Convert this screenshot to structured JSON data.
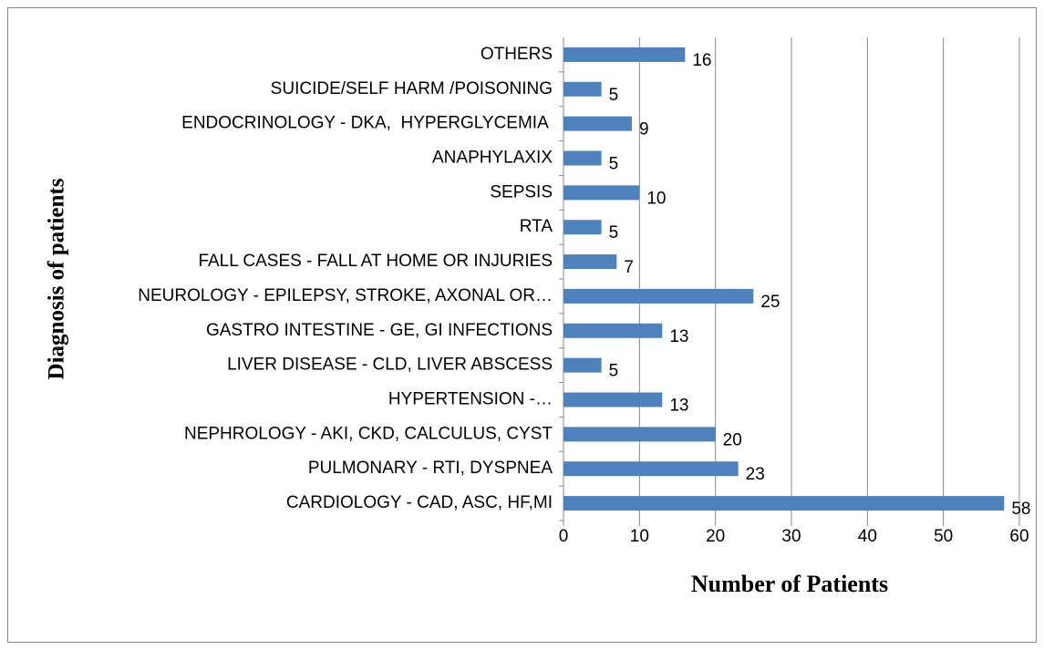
{
  "chart_data": {
    "type": "barh",
    "x_label": "Number of Patients",
    "y_label": "Diagnosis of patients",
    "categories": [
      "CARDIOLOGY - CAD, ASC, HF,MI",
      "PULMONARY - RTI, DYSPNEA",
      "NEPHROLOGY - AKI, CKD, CALCULUS, CYST",
      "HYPERTENSION -…",
      "LIVER DISEASE - CLD, LIVER ABSCESS",
      "GASTRO INTESTINE - GE, GI INFECTIONS",
      "NEUROLOGY - EPILEPSY, STROKE, AXONAL OR…",
      "FALL CASES - FALL AT HOME OR INJURIES",
      "RTA",
      "SEPSIS",
      "ANAPHYLAXIX",
      "ENDOCRINOLOGY - DKA,  HYPERGLYCEMIA ",
      "SUICIDE/SELF HARM /POISONING",
      "OTHERS"
    ],
    "values": [
      58,
      23,
      20,
      13,
      5,
      13,
      25,
      7,
      5,
      10,
      5,
      9,
      5,
      16
    ],
    "color": "#4f81bd",
    "xlim": [
      0,
      60
    ],
    "xticks": [
      0,
      10,
      20,
      30,
      40,
      50,
      60
    ],
    "grid": true
  }
}
